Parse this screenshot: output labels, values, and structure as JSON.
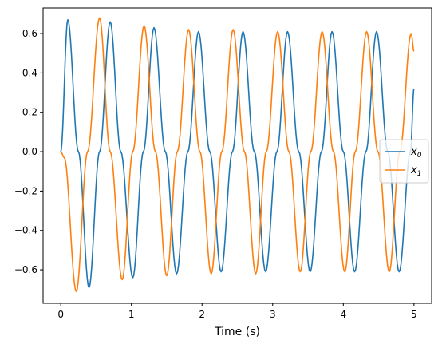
{
  "chart_data": {
    "type": "line",
    "title": "",
    "xlabel": "Time (s)",
    "ylabel": "",
    "xlim": [
      -0.25,
      5.25
    ],
    "ylim": [
      -0.77,
      0.73
    ],
    "xticks": [
      0,
      1,
      2,
      3,
      4,
      5
    ],
    "xtick_labels": [
      "0",
      "1",
      "2",
      "3",
      "4",
      "5"
    ],
    "yticks": [
      -0.6,
      -0.4,
      -0.2,
      0.0,
      0.2,
      0.4,
      0.6
    ],
    "ytick_labels": [
      "−0.6",
      "−0.4",
      "−0.2",
      "0.0",
      "0.2",
      "0.4",
      "0.6"
    ],
    "grid": false,
    "legend_position": "center-right",
    "series": [
      {
        "name": "x0",
        "color": "#1f77b4",
        "x": [
          0.0,
          0.1,
          0.25,
          0.4,
          0.55,
          0.7,
          0.85,
          1.02,
          1.17,
          1.32,
          1.48,
          1.64,
          1.8,
          1.95,
          2.11,
          2.27,
          2.43,
          2.58,
          2.74,
          2.9,
          3.06,
          3.21,
          3.37,
          3.53,
          3.69,
          3.84,
          4.0,
          4.16,
          4.32,
          4.47,
          4.63,
          4.79,
          4.95,
          5.0
        ],
        "y": [
          0.0,
          0.67,
          0.0,
          -0.69,
          0.0,
          0.66,
          0.0,
          -0.64,
          0.0,
          0.63,
          0.0,
          -0.62,
          0.0,
          0.61,
          0.0,
          -0.61,
          0.0,
          0.61,
          0.0,
          -0.61,
          0.0,
          0.61,
          0.0,
          -0.61,
          0.0,
          0.61,
          0.0,
          -0.61,
          0.0,
          0.61,
          0.0,
          -0.61,
          0.0,
          0.32
        ]
      },
      {
        "name": "x1",
        "color": "#ff7f0e",
        "x": [
          0.0,
          0.05,
          0.22,
          0.38,
          0.55,
          0.7,
          0.87,
          1.02,
          1.18,
          1.34,
          1.5,
          1.65,
          1.81,
          1.97,
          2.13,
          2.28,
          2.44,
          2.6,
          2.76,
          2.91,
          3.07,
          3.23,
          3.39,
          3.54,
          3.7,
          3.86,
          4.02,
          4.17,
          4.33,
          4.49,
          4.65,
          4.8,
          4.96,
          5.0
        ],
        "y": [
          0.0,
          -0.03,
          -0.71,
          0.0,
          0.68,
          0.0,
          -0.65,
          0.0,
          0.64,
          0.0,
          -0.63,
          0.0,
          0.62,
          0.0,
          -0.62,
          0.0,
          0.62,
          0.0,
          -0.62,
          0.0,
          0.61,
          0.0,
          -0.61,
          0.0,
          0.61,
          0.0,
          -0.61,
          0.0,
          0.61,
          0.0,
          -0.61,
          0.0,
          0.6,
          0.51
        ]
      }
    ],
    "legend": [
      {
        "label_base": "x",
        "label_sub": "0",
        "color": "#1f77b4"
      },
      {
        "label_base": "x",
        "label_sub": "1",
        "color": "#ff7f0e"
      }
    ]
  }
}
